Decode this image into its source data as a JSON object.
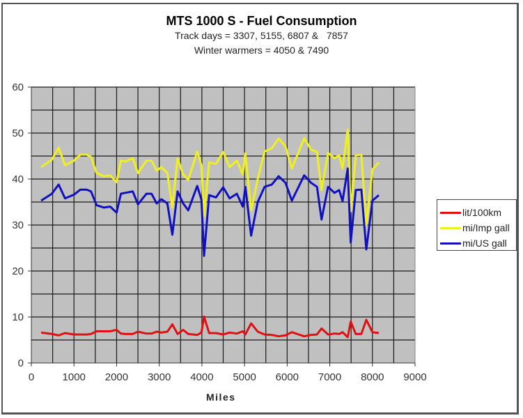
{
  "chart_data": {
    "type": "line",
    "title": "MTS 1000 S - Fuel Consumption",
    "subtitle": [
      "Track days = 3307, 5155, 6807 &   7857",
      "Winter warmers = 4050 & 7490"
    ],
    "xlabel": "Miles",
    "ylabel": "",
    "xlim": [
      0,
      9000
    ],
    "ylim": [
      0,
      60
    ],
    "x_ticks": [
      0,
      1000,
      2000,
      3000,
      4000,
      5000,
      6000,
      7000,
      8000,
      9000
    ],
    "y_ticks": [
      0,
      10,
      20,
      30,
      40,
      50,
      60
    ],
    "grid": true,
    "legend_position": "right",
    "x": [
      230,
      480,
      640,
      790,
      1000,
      1150,
      1300,
      1400,
      1530,
      1700,
      1850,
      2000,
      2100,
      2200,
      2380,
      2500,
      2700,
      2820,
      2940,
      3050,
      3190,
      3307,
      3430,
      3560,
      3680,
      3890,
      3990,
      4050,
      4170,
      4330,
      4500,
      4650,
      4820,
      4960,
      5020,
      5155,
      5310,
      5470,
      5640,
      5800,
      5960,
      6110,
      6400,
      6560,
      6700,
      6807,
      6960,
      7110,
      7220,
      7300,
      7420,
      7490,
      7610,
      7740,
      7857,
      8000,
      8150
    ],
    "series": [
      {
        "name": "lit/100km",
        "color": "#e01010",
        "values": [
          6.6,
          6.3,
          6.0,
          6.5,
          6.2,
          6.2,
          6.2,
          6.3,
          6.9,
          6.9,
          6.9,
          7.2,
          6.4,
          6.3,
          6.3,
          6.8,
          6.4,
          6.4,
          6.8,
          6.6,
          6.8,
          8.4,
          6.3,
          7.2,
          6.3,
          6.1,
          6.6,
          10.1,
          6.5,
          6.5,
          6.2,
          6.6,
          6.4,
          6.9,
          6.2,
          8.6,
          6.8,
          6.2,
          6.1,
          5.8,
          6.0,
          6.7,
          5.8,
          6.1,
          6.2,
          7.5,
          6.2,
          6.4,
          6.3,
          6.7,
          5.6,
          9.0,
          6.3,
          6.3,
          9.4,
          6.7,
          6.5
        ]
      },
      {
        "name": "mi/Imp gall",
        "color": "#f0f020",
        "values": [
          42.6,
          44.2,
          46.8,
          43.0,
          44.0,
          45.3,
          45.3,
          44.8,
          41.3,
          40.6,
          40.8,
          39.3,
          44.0,
          43.8,
          44.5,
          41.3,
          44.0,
          44.0,
          41.8,
          42.6,
          41.3,
          33.8,
          44.5,
          41.0,
          39.8,
          46.0,
          42.9,
          32.0,
          43.6,
          43.3,
          45.9,
          42.6,
          44.0,
          41.0,
          45.6,
          33.2,
          40.0,
          46.0,
          46.7,
          48.8,
          47.1,
          42.3,
          48.9,
          46.4,
          45.9,
          37.6,
          45.7,
          44.5,
          45.2,
          42.3,
          50.8,
          33.0,
          45.2,
          45.3,
          30.0,
          42.1,
          43.6
        ]
      },
      {
        "name": "mi/US gall",
        "color": "#1010c0",
        "values": [
          35.3,
          36.8,
          38.8,
          35.8,
          36.6,
          37.7,
          37.7,
          37.3,
          34.3,
          33.8,
          34.0,
          32.7,
          36.8,
          37.0,
          37.3,
          34.5,
          36.8,
          36.8,
          34.7,
          35.6,
          34.7,
          27.9,
          37.3,
          34.7,
          33.2,
          38.5,
          35.5,
          23.3,
          36.5,
          36.0,
          38.2,
          35.8,
          36.8,
          34.0,
          38.3,
          27.7,
          35.0,
          38.3,
          38.8,
          40.6,
          39.2,
          35.3,
          40.8,
          39.2,
          38.3,
          31.2,
          38.3,
          37.0,
          37.6,
          35.2,
          42.3,
          26.2,
          37.6,
          37.7,
          24.7,
          35.3,
          36.5
        ]
      }
    ]
  },
  "plot_style": {
    "plot_bg": "#c0c0c0",
    "grid_color": "#1a1a1a",
    "tick_color": "#333333"
  }
}
